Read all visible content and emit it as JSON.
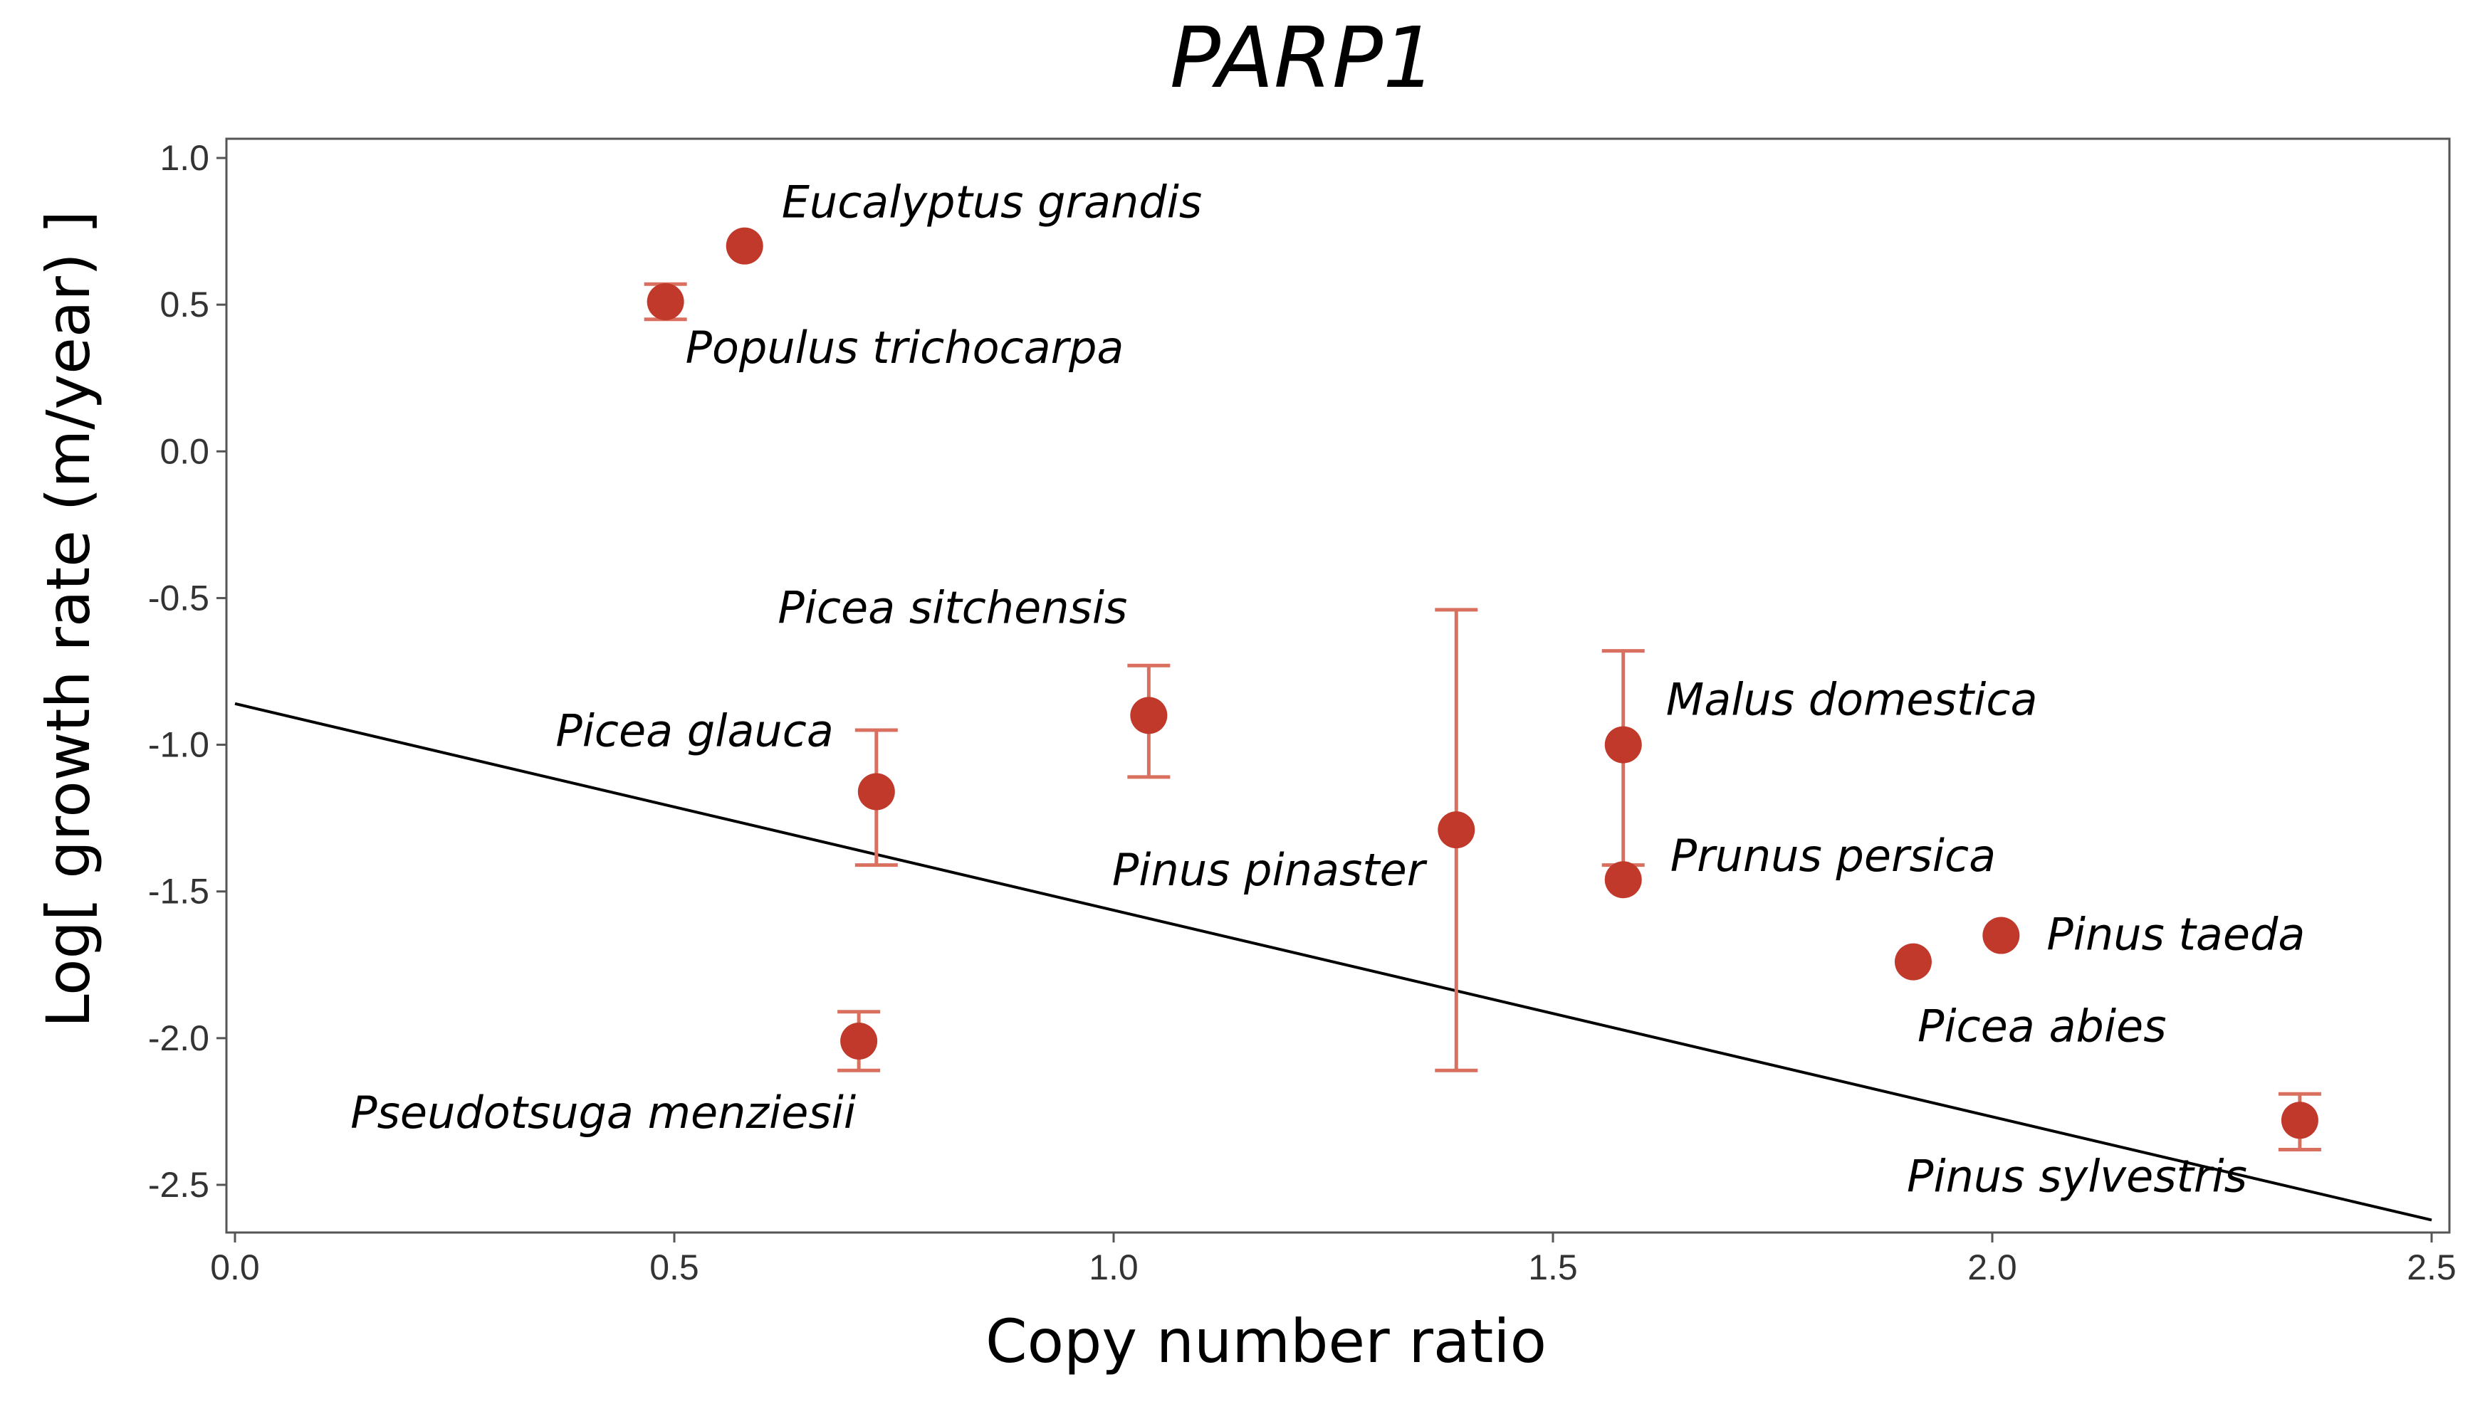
{
  "chart_data": {
    "type": "scatter",
    "title": "PARP1",
    "xlabel": "Copy number ratio",
    "ylabel": "Log[ growth rate (m/year) ]",
    "xlim": [
      0.0,
      2.5
    ],
    "ylim": [
      -2.5,
      1.0
    ],
    "xticks": [
      "0.0",
      "0.5",
      "1.0",
      "1.5",
      "2.0",
      "2.5"
    ],
    "yticks": [
      "1.0",
      "0.5",
      "0.0",
      "-0.5",
      "-1.0",
      "-1.5",
      "-2.0",
      "-2.5"
    ],
    "grid": false,
    "point_color": "#c0392b",
    "errorbar_color": "#d9705f",
    "line_color": "#000000",
    "points": [
      {
        "label": "Eucalyptus grandis",
        "x": 0.58,
        "y": 0.7,
        "yerr_low": null,
        "yerr_high": null,
        "label_anchor": "right-above"
      },
      {
        "label": "Populus trichocarpa",
        "x": 0.49,
        "y": 0.51,
        "yerr_low": 0.45,
        "yerr_high": 0.57,
        "label_anchor": "right-below"
      },
      {
        "label": "Picea sitchensis",
        "x": 1.04,
        "y": -0.9,
        "yerr_low": -1.11,
        "yerr_high": -0.73,
        "label_anchor": "left-above"
      },
      {
        "label": "Picea glauca",
        "x": 0.73,
        "y": -1.16,
        "yerr_low": -1.41,
        "yerr_high": -0.95,
        "label_anchor": "left-above"
      },
      {
        "label": "Pinus pinaster",
        "x": 1.39,
        "y": -1.29,
        "yerr_low": -2.11,
        "yerr_high": -0.54,
        "label_anchor": "left-below"
      },
      {
        "label": "Malus domestica",
        "x": 1.58,
        "y": -1.0,
        "yerr_low": -1.41,
        "yerr_high": -0.68,
        "label_anchor": "right-above"
      },
      {
        "label": "Prunus persica",
        "x": 1.58,
        "y": -1.46,
        "yerr_low": null,
        "yerr_high": null,
        "label_anchor": "right-above"
      },
      {
        "label": "Pinus taeda",
        "x": 2.01,
        "y": -1.65,
        "yerr_low": null,
        "yerr_high": null,
        "label_anchor": "right"
      },
      {
        "label": "Picea abies",
        "x": 1.91,
        "y": -1.74,
        "yerr_low": null,
        "yerr_high": null,
        "label_anchor": "right-below"
      },
      {
        "label": "Pseudotsuga menziesii",
        "x": 0.71,
        "y": -2.01,
        "yerr_low": -2.11,
        "yerr_high": -1.91,
        "label_anchor": "left-below"
      },
      {
        "label": "Pinus sylvestris",
        "x": 2.35,
        "y": -2.28,
        "yerr_low": -2.38,
        "yerr_high": -2.19,
        "label_anchor": "left-below"
      }
    ],
    "regression_line": {
      "x": [
        0.0,
        2.5
      ],
      "y": [
        -0.86,
        -2.62
      ]
    }
  }
}
